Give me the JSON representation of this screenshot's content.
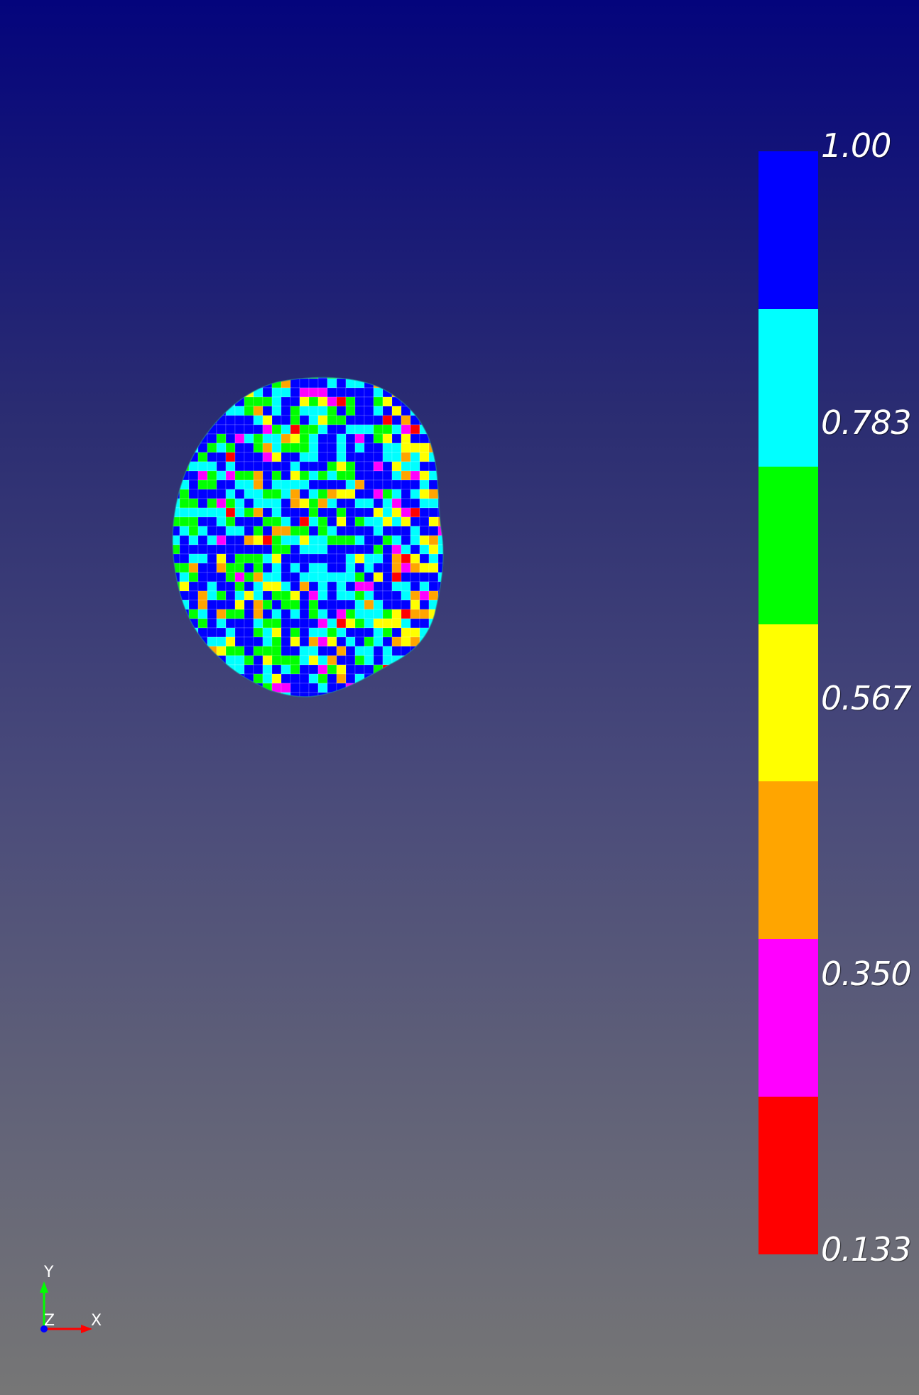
{
  "scene": {
    "background_top": "#04047c",
    "background_bottom": "#767676",
    "mesh_palette": [
      "#0000ff",
      "#00ffff",
      "#00ff00",
      "#ffff00",
      "#ffa500",
      "#ff00ff",
      "#ff0000",
      "#0808c8"
    ]
  },
  "colorbar": {
    "bands": [
      {
        "color": "#0000ff"
      },
      {
        "color": "#00ffff"
      },
      {
        "color": "#00ff00"
      },
      {
        "color": "#ffff00"
      },
      {
        "color": "#ffa500"
      },
      {
        "color": "#ff00ff"
      },
      {
        "color": "#ff0000"
      }
    ],
    "labels": [
      "1.00",
      "0.783",
      "0.567",
      "0.350",
      "0.133"
    ]
  },
  "axes": {
    "y_label": "Y",
    "z_label": "Z",
    "x_label": "X",
    "y_color": "#00ff00",
    "x_color": "#ff0000",
    "z_color": "#0000ff"
  }
}
